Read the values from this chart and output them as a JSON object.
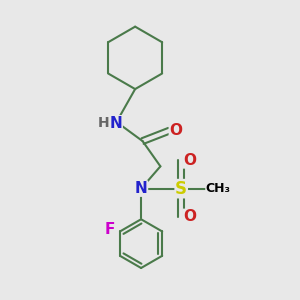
{
  "background_color": "#e8e8e8",
  "bond_color": "#4a7a4a",
  "bond_width": 1.5,
  "atom_colors": {
    "N": "#2222cc",
    "O": "#cc2222",
    "S": "#cccc00",
    "F": "#cc00cc",
    "H": "#666666",
    "C": "#000000"
  },
  "font_size": 10,
  "fig_size": [
    3.0,
    3.0
  ],
  "dpi": 100
}
